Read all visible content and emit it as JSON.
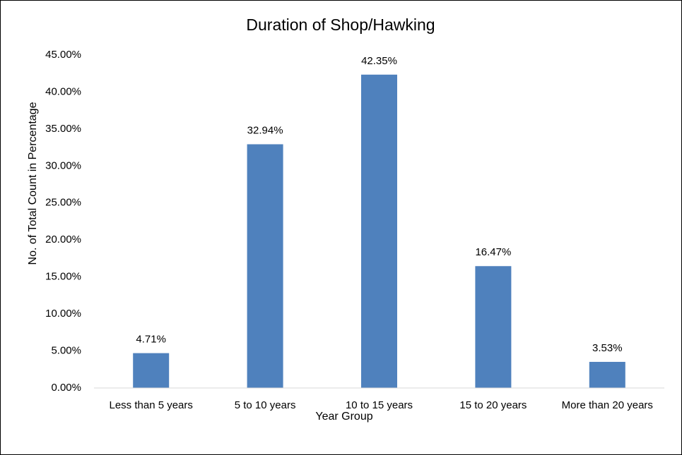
{
  "chart_data": {
    "type": "bar",
    "title": "Duration of Shop/Hawking",
    "x_label": "Year Group",
    "y_label": "No. of Total Count in Percentage",
    "categories": [
      "Less than 5 years",
      "5 to 10 years",
      "10 to 15 years",
      "15 to 20 years",
      "More than 20 years"
    ],
    "values": [
      4.71,
      32.94,
      42.35,
      16.47,
      3.53
    ],
    "value_labels": [
      "4.71%",
      "32.94%",
      "42.35%",
      "16.47%",
      "3.53%"
    ],
    "color": "#4f81bd",
    "ylim": [
      0,
      45
    ],
    "yticks": [
      {
        "value": 0,
        "label": "0.00%"
      },
      {
        "value": 5,
        "label": "5.00%"
      },
      {
        "value": 10,
        "label": "10.00%"
      },
      {
        "value": 15,
        "label": "15.00%"
      },
      {
        "value": 20,
        "label": "20.00%"
      },
      {
        "value": 25,
        "label": "25.00%"
      },
      {
        "value": 30,
        "label": "30.00%"
      },
      {
        "value": 35,
        "label": "35.00%"
      },
      {
        "value": 40,
        "label": "40.00%"
      },
      {
        "value": 45,
        "label": "45.00%"
      }
    ],
    "grid": false
  }
}
